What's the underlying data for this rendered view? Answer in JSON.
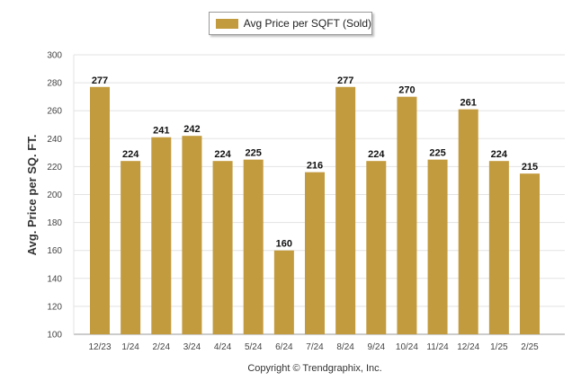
{
  "legend": {
    "label": "Avg Price per SQFT (Sold)"
  },
  "colors": {
    "bar": "#c39b3f",
    "grid": "#e3e3e3",
    "axis": "#9a9a9a"
  },
  "footer": {
    "copyright": "Copyright © Trendgraphix, Inc."
  },
  "chart_data": {
    "type": "bar",
    "title": "",
    "xlabel": "",
    "ylabel": "Avg. Price per SQ. FT.",
    "ylim": [
      100,
      300
    ],
    "yticks": [
      100,
      120,
      140,
      160,
      180,
      200,
      220,
      240,
      260,
      280,
      300
    ],
    "grid": true,
    "legend_position": "top-center",
    "categories": [
      "12/23",
      "1/24",
      "2/24",
      "3/24",
      "4/24",
      "5/24",
      "6/24",
      "7/24",
      "8/24",
      "9/24",
      "10/24",
      "11/24",
      "12/24",
      "1/25",
      "2/25"
    ],
    "series": [
      {
        "name": "Avg Price per SQFT (Sold)",
        "values": [
          277,
          224,
          241,
          242,
          224,
          225,
          160,
          216,
          277,
          224,
          270,
          225,
          261,
          224,
          215
        ]
      }
    ]
  }
}
